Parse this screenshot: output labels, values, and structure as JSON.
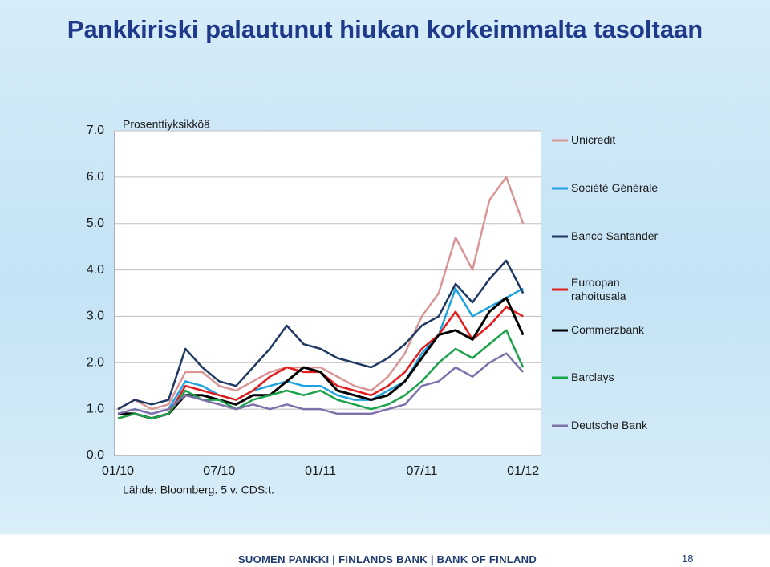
{
  "chart_data": {
    "type": "line",
    "title": "Pankkiriski palautunut hiukan korkeimmalta tasoltaan",
    "y_label": "Prosenttiyksikköä",
    "source": "Lähde: Bloomberg. 5 v. CDS:t.",
    "x": [
      "01/10",
      "02/10",
      "03/10",
      "04/10",
      "05/10",
      "06/10",
      "07/10",
      "08/10",
      "09/10",
      "10/10",
      "11/10",
      "12/10",
      "01/11",
      "02/11",
      "03/11",
      "04/11",
      "05/11",
      "06/11",
      "07/11",
      "08/11",
      "09/11",
      "10/11",
      "11/11",
      "12/11",
      "01/12"
    ],
    "xticks": [
      "01/10",
      "07/10",
      "01/11",
      "07/11",
      "01/12"
    ],
    "ylim": [
      0,
      7
    ],
    "yticks": [
      {
        "value": 0,
        "label": "0.0"
      },
      {
        "value": 1,
        "label": "1.0"
      },
      {
        "value": 2,
        "label": "2.0"
      },
      {
        "value": 3,
        "label": "3.0"
      },
      {
        "value": 4,
        "label": "4.0"
      },
      {
        "value": 5,
        "label": "5.0"
      },
      {
        "value": 6,
        "label": "6.0"
      },
      {
        "value": 7,
        "label": "7.0"
      }
    ],
    "grid": true,
    "legend": "right",
    "series": [
      {
        "name": "Unicredit",
        "color": "#d99694",
        "values": [
          1.0,
          1.2,
          1.0,
          1.1,
          1.8,
          1.8,
          1.5,
          1.4,
          1.6,
          1.8,
          1.9,
          1.9,
          1.9,
          1.7,
          1.5,
          1.4,
          1.7,
          2.2,
          3.0,
          3.5,
          4.7,
          4.0,
          5.5,
          6.0,
          5.0
        ]
      },
      {
        "name": "Société Générale",
        "color": "#1fa2e0",
        "values": [
          0.9,
          1.0,
          0.9,
          1.0,
          1.6,
          1.5,
          1.3,
          1.2,
          1.4,
          1.5,
          1.6,
          1.5,
          1.5,
          1.3,
          1.2,
          1.2,
          1.4,
          1.6,
          2.2,
          2.6,
          3.6,
          3.0,
          3.2,
          3.4,
          3.6
        ]
      },
      {
        "name": "Banco Santander",
        "color": "#1f3864",
        "values": [
          1.0,
          1.2,
          1.1,
          1.2,
          2.3,
          1.9,
          1.6,
          1.5,
          1.9,
          2.3,
          2.8,
          2.4,
          2.3,
          2.1,
          2.0,
          1.9,
          2.1,
          2.4,
          2.8,
          3.0,
          3.7,
          3.3,
          3.8,
          4.2,
          3.5
        ]
      },
      {
        "name": "Euroopan rahoitusala",
        "color": "#e41c1c",
        "values": [
          0.8,
          0.9,
          0.8,
          0.9,
          1.5,
          1.4,
          1.3,
          1.2,
          1.4,
          1.7,
          1.9,
          1.8,
          1.8,
          1.5,
          1.4,
          1.3,
          1.5,
          1.8,
          2.3,
          2.6,
          3.1,
          2.5,
          2.8,
          3.2,
          3.0
        ]
      },
      {
        "name": "Commerzbank",
        "color": "#000000",
        "values": [
          0.9,
          0.9,
          0.8,
          0.9,
          1.3,
          1.3,
          1.2,
          1.1,
          1.3,
          1.3,
          1.6,
          1.9,
          1.8,
          1.4,
          1.3,
          1.2,
          1.3,
          1.6,
          2.1,
          2.6,
          2.7,
          2.5,
          3.1,
          3.4,
          2.6
        ]
      },
      {
        "name": "Barclays",
        "color": "#1aa34a",
        "values": [
          0.8,
          0.9,
          0.8,
          0.9,
          1.4,
          1.2,
          1.2,
          1.0,
          1.2,
          1.3,
          1.4,
          1.3,
          1.4,
          1.2,
          1.1,
          1.0,
          1.1,
          1.3,
          1.6,
          2.0,
          2.3,
          2.1,
          2.4,
          2.7,
          1.9
        ]
      },
      {
        "name": "Deutsche Bank",
        "color": "#7f6faa",
        "values": [
          0.9,
          1.0,
          0.9,
          1.0,
          1.3,
          1.2,
          1.1,
          1.0,
          1.1,
          1.0,
          1.1,
          1.0,
          1.0,
          0.9,
          0.9,
          0.9,
          1.0,
          1.1,
          1.5,
          1.6,
          1.9,
          1.7,
          2.0,
          2.2,
          1.8
        ]
      }
    ],
    "footer": "SUOMEN PANKKI | FINLANDS BANK | BANK OF FINLAND",
    "page_number": "18"
  }
}
